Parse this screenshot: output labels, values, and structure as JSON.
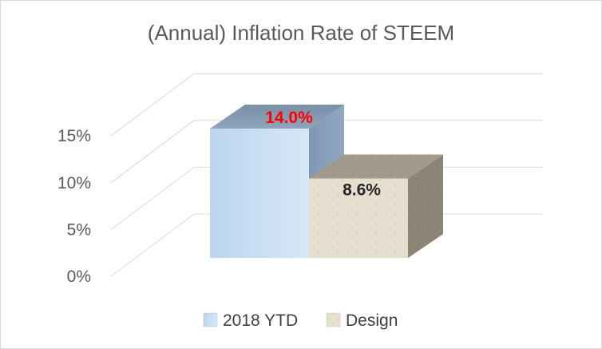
{
  "chart_data": {
    "type": "bar",
    "title": "(Annual) Inflation Rate of STEEM",
    "xlabel": "",
    "ylabel": "",
    "ylim": [
      0,
      15
    ],
    "yticks": [
      "0%",
      "5%",
      "10%",
      "15%"
    ],
    "ytick_values": [
      0,
      5,
      10,
      15
    ],
    "grid": true,
    "legend_position": "bottom",
    "series": [
      {
        "name": "2018 YTD",
        "value": 14.0,
        "label": "14.0%",
        "label_color": "#ff0000",
        "color": "#c9dff2"
      },
      {
        "name": "Design",
        "value": 8.6,
        "label": "8.6%",
        "label_color": "#262626",
        "color": "#e3dccb"
      }
    ]
  }
}
